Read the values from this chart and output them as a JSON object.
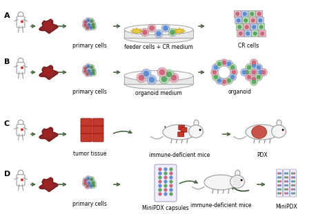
{
  "bg_color": "#ffffff",
  "arrow_color": "#4a6741",
  "label_fontsize": 5.5,
  "panel_label_fontsize": 8,
  "panels": [
    "A",
    "B",
    "C",
    "D"
  ],
  "labels_A": [
    "primary cells",
    "feeder cells + CR medium",
    "CR cells"
  ],
  "labels_B": [
    "primary cells",
    "organoid medium",
    "organoid"
  ],
  "labels_C": [
    "tumor tissue",
    "immune-deficient mice",
    "PDX"
  ],
  "labels_D": [
    "primary cells",
    "MiniPDX capsules",
    "immune-deficient mice",
    "MiniPDX"
  ],
  "cell_colors_inner": [
    "#d4667a",
    "#5b8dd9",
    "#5aaa5f"
  ],
  "cell_colors_outer": [
    "#f0b0c0",
    "#b0c8f5",
    "#b0e0b0"
  ],
  "tumor_dark": "#8b1a1a",
  "tumor_mid": "#aa2222",
  "tissue_color": "#c0392b",
  "mouse_body": "#f5f5f5",
  "mouse_edge": "#999999",
  "dish_face": "#f0f0f0",
  "dish_edge": "#aaaaaa",
  "capsule_face": "#eeeeff",
  "capsule_edge": "#9999bb"
}
